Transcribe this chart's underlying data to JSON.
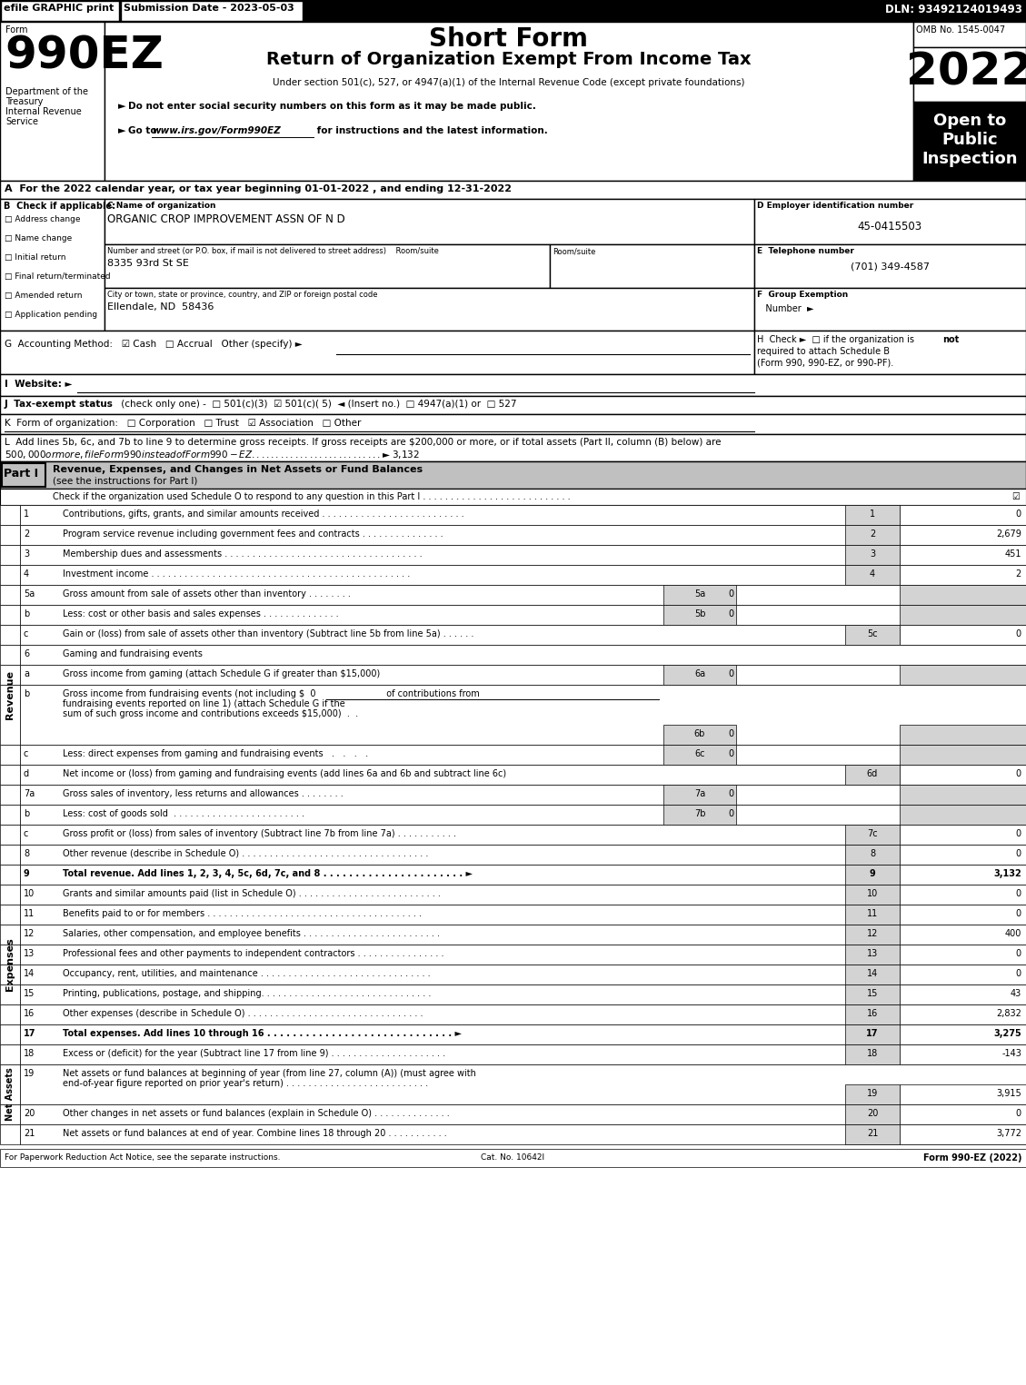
{
  "efile_text": "efile GRAPHIC print",
  "submission_date": "Submission Date - 2023-05-03",
  "dln": "DLN: 93492124019493",
  "form_number": "990EZ",
  "title1": "Short Form",
  "title2": "Return of Organization Exempt From Income Tax",
  "omb": "OMB No. 1545-0047",
  "year": "2022",
  "dept1": "Department of the",
  "dept2": "Treasury",
  "dept3": "Internal Revenue",
  "dept4": "Service",
  "sub1": "Under section 501(c), 527, or 4947(a)(1) of the Internal Revenue Code (except private foundations)",
  "sub2": "Do not enter social security numbers on this form as it may be made public.",
  "sub3_a": "Go to ",
  "sub3_b": "www.irs.gov/Form990EZ",
  "sub3_c": " for instructions and the latest information.",
  "open_to": "Open to\nPublic\nInspection",
  "section_a": "A  For the 2022 calendar year, or tax year beginning 01-01-2022 , and ending 12-31-2022",
  "check_items": [
    "Address change",
    "Name change",
    "Initial return",
    "Final return/terminated",
    "Amended return",
    "Application pending"
  ],
  "org_name": "ORGANIC CROP IMPROVEMENT ASSN OF N D",
  "ein": "45-0415503",
  "addr_label": "Number and street (or P.O. box, if mail is not delivered to street address)    Room/suite",
  "addr": "8335 93rd St SE",
  "phone": "(701) 349-4587",
  "city_label": "City or town, state or province, country, and ZIP or foreign postal code",
  "city": "Ellendale, ND  58436",
  "line_l": "L  Add lines 5b, 6c, and 7b to line 9 to determine gross receipts. If gross receipts are $200,000 or more, or if total assets (Part II, column (B) below) are",
  "line_l2": "$500,000 or more, file Form 990 instead of Form 990-EZ . . . . . . . . . . . . . . . . . . . . . . . . . . .  ► $ 3,132",
  "part1_desc": "Revenue, Expenses, and Changes in Net Assets or Fund Balances",
  "part1_desc2": "(see the instructions for Part I)",
  "part1_check": "Check if the organization used Schedule O to respond to any question in this Part I . . . . . . . . . . . . . . . . . . . . . . . . . . .",
  "footer1": "For Paperwork Reduction Act Notice, see the separate instructions.",
  "footer2": "Cat. No. 10642I",
  "footer3": "Form 990-EZ (2022)"
}
